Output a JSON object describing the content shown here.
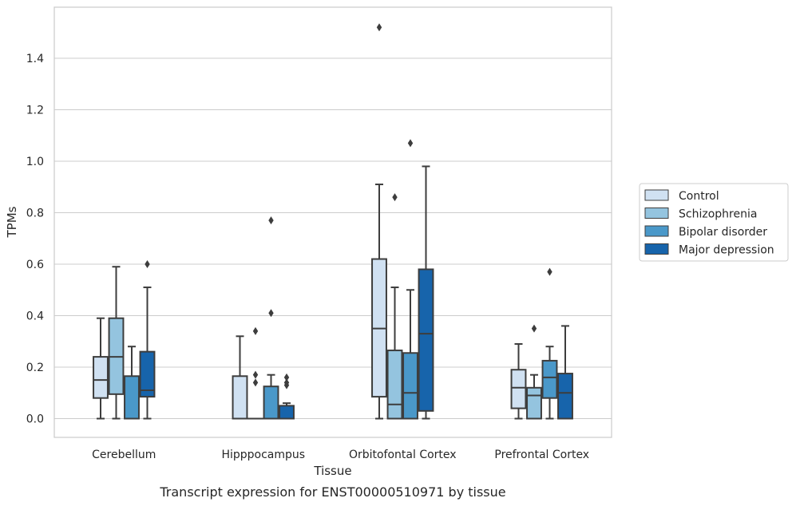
{
  "chart_data": {
    "type": "box",
    "caption": "Transcript expression for ENST00000510971 by tissue",
    "xlabel": "Tissue",
    "ylabel": "TPMs",
    "ylim": [
      -0.07,
      1.6
    ],
    "yticks": [
      "0.0",
      "0.2",
      "0.4",
      "0.6",
      "0.8",
      "1.0",
      "1.2",
      "1.4"
    ],
    "grid": true,
    "legend_position": "right",
    "categories": [
      "Cerebellum",
      "Hipppocampus",
      "Orbitofontal Cortex",
      "Prefrontal Cortex"
    ],
    "series": [
      {
        "name": "Control",
        "color": "#d0e1f2",
        "boxes": [
          {
            "whislo": 0.0,
            "q1": 0.08,
            "med": 0.15,
            "q3": 0.24,
            "whishi": 0.39,
            "fliers": []
          },
          {
            "whislo": 0.0,
            "q1": 0.0,
            "med": 0.0,
            "q3": 0.165,
            "whishi": 0.32,
            "fliers": []
          },
          {
            "whislo": 0.0,
            "q1": 0.085,
            "med": 0.35,
            "q3": 0.62,
            "whishi": 0.91,
            "fliers": [
              1.52
            ]
          },
          {
            "whislo": 0.0,
            "q1": 0.04,
            "med": 0.12,
            "q3": 0.19,
            "whishi": 0.29,
            "fliers": []
          }
        ]
      },
      {
        "name": "Schizophrenia",
        "color": "#94c4df",
        "boxes": [
          {
            "whislo": 0.0,
            "q1": 0.095,
            "med": 0.24,
            "q3": 0.39,
            "whishi": 0.59,
            "fliers": []
          },
          {
            "whislo": 0.0,
            "q1": 0.0,
            "med": 0.0,
            "q3": 0.0,
            "whishi": 0.0,
            "fliers": [
              0.14,
              0.17,
              0.34
            ]
          },
          {
            "whislo": 0.0,
            "q1": 0.0,
            "med": 0.055,
            "q3": 0.265,
            "whishi": 0.51,
            "fliers": [
              0.86
            ]
          },
          {
            "whislo": 0.0,
            "q1": 0.0,
            "med": 0.09,
            "q3": 0.12,
            "whishi": 0.17,
            "fliers": [
              0.35
            ]
          }
        ]
      },
      {
        "name": "Bipolar disorder",
        "color": "#4a98c9",
        "boxes": [
          {
            "whislo": 0.0,
            "q1": 0.0,
            "med": 0.0,
            "q3": 0.165,
            "whishi": 0.28,
            "fliers": []
          },
          {
            "whislo": 0.0,
            "q1": 0.0,
            "med": 0.0,
            "q3": 0.125,
            "whishi": 0.17,
            "fliers": [
              0.41,
              0.77
            ]
          },
          {
            "whislo": 0.0,
            "q1": 0.0,
            "med": 0.1,
            "q3": 0.255,
            "whishi": 0.5,
            "fliers": [
              1.07
            ]
          },
          {
            "whislo": 0.0,
            "q1": 0.08,
            "med": 0.16,
            "q3": 0.225,
            "whishi": 0.28,
            "fliers": [
              0.57
            ]
          }
        ]
      },
      {
        "name": "Major depression",
        "color": "#1764ab",
        "boxes": [
          {
            "whislo": 0.0,
            "q1": 0.085,
            "med": 0.11,
            "q3": 0.26,
            "whishi": 0.51,
            "fliers": [
              0.6
            ]
          },
          {
            "whislo": 0.0,
            "q1": 0.0,
            "med": 0.0,
            "q3": 0.05,
            "whishi": 0.06,
            "fliers": [
              0.13,
              0.14,
              0.16
            ]
          },
          {
            "whislo": 0.0,
            "q1": 0.03,
            "med": 0.33,
            "q3": 0.58,
            "whishi": 0.98,
            "fliers": []
          },
          {
            "whislo": 0.0,
            "q1": 0.0,
            "med": 0.1,
            "q3": 0.175,
            "whishi": 0.36,
            "fliers": []
          }
        ]
      }
    ]
  }
}
